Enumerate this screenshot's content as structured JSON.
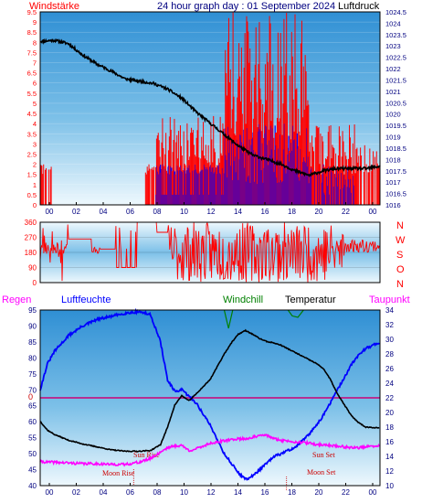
{
  "header": {
    "left_label": "Windstärke",
    "title": "24 hour graph day : 01 September 2024",
    "right_label": "Luftdruck"
  },
  "colors": {
    "wind_gust": "#ff0000",
    "wind_avg": "#0000ff",
    "pressure": "#000000",
    "direction": "#ff0000",
    "humidity": "#0000ff",
    "temperature": "#000000",
    "windchill": "#008000",
    "dewpoint": "#ff00ff",
    "rain_line": "#cc0077",
    "sun_moon": "#cc0000",
    "axis_text_blue": "#000080",
    "axis_text_red": "#ff0000"
  },
  "legend": {
    "rain": "Regen",
    "humidity": "Luftfeuchte",
    "windchill": "Windchill",
    "temperature": "Temperatur",
    "dewpoint": "Taupunkt"
  },
  "annotations": {
    "sun_rise": "Sun Rise",
    "moon_rise": "Moon Rise",
    "sun_set": "Sun Set",
    "moon_set": "Moon Set"
  },
  "direction_letters": [
    "N",
    "W",
    "S",
    "O",
    "N"
  ],
  "chart_data": [
    {
      "type": "line",
      "title": "24 hour graph day : 01 September 2024",
      "x_ticks": [
        "00",
        "02",
        "04",
        "06",
        "08",
        "10",
        "12",
        "14",
        "16",
        "18",
        "20",
        "22",
        "00"
      ],
      "y_left": {
        "label": "Windstärke",
        "ticks": [
          "0",
          "0.5",
          "1",
          "1.5",
          "2",
          "2.5",
          "3",
          "3.5",
          "4",
          "4.5",
          "5",
          "5.5",
          "6",
          "6.5",
          "7",
          "7.5",
          "8",
          "8.5",
          "9",
          "9.5"
        ],
        "range": [
          0,
          9.5
        ]
      },
      "y_right": {
        "label": "Luftdruck",
        "ticks": [
          "1016",
          "1016.5",
          "1017",
          "1017.5",
          "1018",
          "1018.5",
          "1019",
          "1019.5",
          "1020",
          "1020.5",
          "1021",
          "1021.5",
          "1022",
          "1022.5",
          "1023",
          "1023.5",
          "1024",
          "1024.5"
        ],
        "range": [
          1016,
          1024.5
        ]
      },
      "series": [
        {
          "name": "Luftdruck",
          "hours": [
            0,
            1,
            2,
            3,
            4,
            5,
            6,
            7,
            8,
            9,
            10,
            11,
            12,
            13,
            14,
            15,
            16,
            17,
            18,
            19,
            20,
            21,
            22,
            23,
            24
          ],
          "values": [
            1023.2,
            1023.25,
            1023.1,
            1022.6,
            1022.2,
            1021.9,
            1021.55,
            1021.45,
            1021.35,
            1021.1,
            1020.7,
            1020.1,
            1019.6,
            1019.1,
            1018.6,
            1018.2,
            1018.0,
            1017.8,
            1017.5,
            1017.3,
            1017.5,
            1017.6,
            1017.6,
            1017.6,
            1017.7
          ]
        }
      ]
    },
    {
      "type": "line",
      "y_left": {
        "ticks": [
          "0",
          "90",
          "180",
          "270",
          "360"
        ],
        "range": [
          0,
          360
        ]
      },
      "series": [
        {
          "name": "Windrichtung"
        }
      ]
    },
    {
      "type": "line",
      "x_ticks": [
        "00",
        "02",
        "04",
        "06",
        "08",
        "10",
        "12",
        "14",
        "16",
        "18",
        "20",
        "22",
        "00"
      ],
      "y_left": {
        "label": "Luftfeuchte",
        "ticks": [
          "40",
          "45",
          "50",
          "55",
          "60",
          "65",
          "70",
          "75",
          "80",
          "85",
          "90",
          "95"
        ],
        "range": [
          40,
          95
        ]
      },
      "y_rain": {
        "label": "Regen",
        "value": "0"
      },
      "y_right": {
        "label": "Temperatur",
        "ticks": [
          "10",
          "12",
          "14",
          "16",
          "18",
          "20",
          "22",
          "24",
          "26",
          "28",
          "30",
          "32",
          "34"
        ],
        "range": [
          10,
          34
        ]
      },
      "series": [
        {
          "name": "Luftfeuchte",
          "axis": "left",
          "hours": [
            0,
            0.5,
            1,
            2,
            3,
            4,
            5,
            6,
            7,
            7.8,
            8.5,
            9,
            9.5,
            10,
            10.5,
            11,
            12,
            13,
            13.5,
            14,
            14.5,
            15,
            15.5,
            16,
            16.5,
            17,
            18,
            19,
            19.5,
            20,
            20.5,
            21,
            21.5,
            22,
            22.5,
            23,
            24
          ],
          "values": [
            70,
            78,
            82,
            87,
            90,
            92,
            93,
            94,
            94.5,
            93.5,
            85,
            73,
            69.5,
            70,
            68,
            66,
            59,
            50,
            47,
            44,
            42,
            43,
            45,
            47,
            49,
            50,
            52,
            56,
            59,
            62,
            66,
            70,
            74,
            78,
            81,
            83,
            85
          ]
        },
        {
          "name": "Temperatur",
          "axis": "right",
          "hours": [
            0,
            0.5,
            1,
            2,
            3,
            4,
            5,
            6,
            7,
            7.8,
            8.5,
            9,
            9.5,
            10,
            10.5,
            11,
            12,
            13,
            13.5,
            14,
            14.5,
            15,
            15.5,
            16,
            16.5,
            17,
            18,
            19,
            19.5,
            20,
            20.5,
            21,
            21.5,
            22,
            22.5,
            23,
            24
          ],
          "values": [
            18.8,
            17.6,
            17.0,
            16.2,
            15.7,
            15.3,
            14.9,
            14.7,
            14.7,
            14.8,
            15.6,
            18.0,
            21.0,
            22.3,
            21.6,
            22.5,
            24.5,
            28.0,
            29.5,
            30.7,
            31.2,
            30.7,
            30.1,
            29.7,
            29.5,
            29.2,
            28.2,
            27.2,
            26.7,
            26.0,
            24.5,
            22.5,
            21.0,
            19.5,
            18.6,
            18.0,
            17.9
          ]
        },
        {
          "name": "Taupunkt",
          "axis": "right",
          "hours": [
            0,
            0.5,
            1,
            2,
            3,
            4,
            5,
            6,
            7,
            7.8,
            8.5,
            9,
            9.5,
            10,
            10.5,
            11,
            12,
            13,
            13.5,
            14,
            14.5,
            15,
            15.5,
            16,
            16.5,
            17,
            18,
            19,
            19.5,
            20,
            20.5,
            21,
            21.5,
            22,
            22.5,
            23,
            24
          ],
          "values": [
            13.3,
            13.2,
            13.2,
            13.1,
            13.0,
            13.0,
            12.9,
            12.9,
            13.2,
            13.7,
            14.6,
            15.2,
            15.4,
            15.5,
            14.8,
            15.0,
            15.8,
            16.1,
            16.3,
            16.4,
            16.4,
            16.6,
            16.8,
            16.9,
            16.4,
            16.2,
            16.0,
            15.8,
            15.6,
            15.6,
            15.5,
            15.4,
            15.3,
            15.2,
            15.2,
            15.3,
            15.4
          ]
        },
        {
          "name": "Windchill",
          "axis": "right",
          "hours": [
            13,
            13.3,
            13.6,
            17.5,
            17.8,
            18.2,
            18.6
          ],
          "values": [
            34,
            31.5,
            34,
            34,
            33.2,
            33.0,
            34
          ]
        }
      ]
    }
  ]
}
